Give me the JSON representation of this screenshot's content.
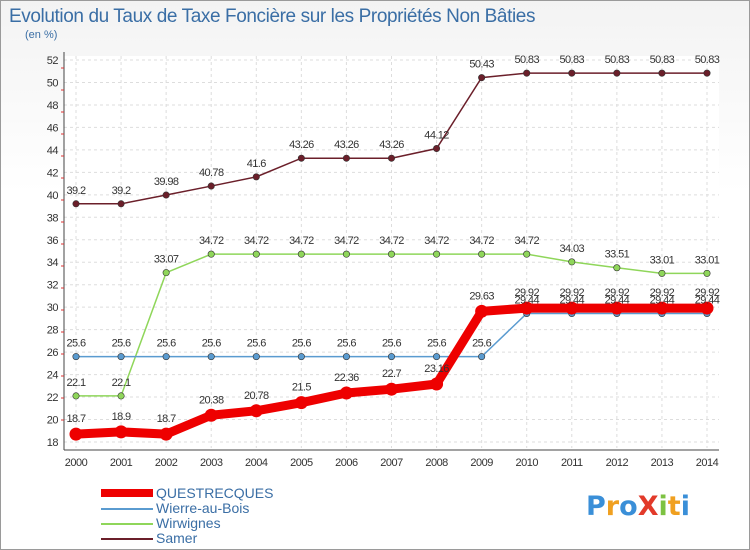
{
  "title": "Evolution du Taux de Taxe Foncière sur les Propriétés Non Bâties",
  "ylabel": "(en %)",
  "logo": {
    "text": "ProXiti",
    "colors": [
      "#3a8fd8",
      "#f0a020",
      "#3a8fd8",
      "#e23a2a",
      "#7dc242",
      "#f0a020",
      "#3a8fd8"
    ]
  },
  "chart_data": {
    "type": "line",
    "title": "Evolution du Taux de Taxe Foncière sur les Propriétés Non Bâties",
    "ylabel": "(en %)",
    "x": [
      2000,
      2001,
      2002,
      2003,
      2004,
      2005,
      2006,
      2007,
      2008,
      2009,
      2010,
      2011,
      2012,
      2013,
      2014
    ],
    "x_tick_labels": [
      "2000",
      "2001",
      "2002",
      "2003",
      "2004",
      "2005",
      "2006",
      "2007",
      "2008",
      "2009",
      "2010",
      "2011",
      "2012",
      "2013",
      "2014"
    ],
    "ylim": [
      18,
      52
    ],
    "y_ticks": [
      18,
      20,
      22,
      24,
      26,
      28,
      30,
      32,
      34,
      36,
      38,
      40,
      42,
      44,
      46,
      48,
      50,
      52
    ],
    "y_tick_labels": [
      "18",
      "20",
      "22",
      "24",
      "26",
      "28",
      "30",
      "32",
      "34",
      "36",
      "38",
      "40",
      "42",
      "44",
      "46",
      "48",
      "50",
      "52"
    ],
    "grid": true,
    "legend_position": "bottom-left",
    "series": [
      {
        "name": "Samer",
        "color": "#6b1f2a",
        "values": [
          39.2,
          39.2,
          39.98,
          40.78,
          41.6,
          43.26,
          43.26,
          43.26,
          44.12,
          50.43,
          50.83,
          50.83,
          50.83,
          50.83,
          50.83
        ],
        "labels": [
          "39.2",
          "39.2",
          "39.98",
          "40.78",
          "41.6",
          "43.26",
          "43.26",
          "43.26",
          "44.12",
          "50.43",
          "50.83",
          "50.83",
          "50.83",
          "50.83",
          "50.83"
        ]
      },
      {
        "name": "Wirwignes",
        "color": "#8fd65a",
        "values": [
          22.1,
          22.1,
          33.07,
          34.72,
          34.72,
          34.72,
          34.72,
          34.72,
          34.72,
          34.72,
          34.72,
          34.03,
          33.51,
          33.01,
          33.01
        ],
        "labels": [
          "22.1",
          "22.1",
          "33.07",
          "34.72",
          "34.72",
          "34.72",
          "34.72",
          "34.72",
          "34.72",
          "34.72",
          "34.72",
          "34.03",
          "33.51",
          "33.01",
          "33.01"
        ]
      },
      {
        "name": "Wierre-au-Bois",
        "color": "#5a9bd0",
        "values": [
          25.6,
          25.6,
          25.6,
          25.6,
          25.6,
          25.6,
          25.6,
          25.6,
          25.6,
          25.6,
          29.44,
          29.44,
          29.44,
          29.44,
          29.44
        ],
        "labels": [
          "25.6",
          "25.6",
          "25.6",
          "25.6",
          "25.6",
          "25.6",
          "25.6",
          "25.6",
          "25.6",
          "25.6",
          "29.44",
          "29.44",
          "29.44",
          "29.44",
          "29.44"
        ]
      },
      {
        "name": "QUESTRECQUES",
        "color": "#ee0000",
        "values": [
          18.7,
          18.9,
          18.7,
          20.38,
          20.78,
          21.5,
          22.36,
          22.7,
          23.16,
          29.63,
          29.92,
          29.92,
          29.92,
          29.92,
          29.92
        ],
        "labels": [
          "18.7",
          "18.9",
          "18.7",
          "20.38",
          "20.78",
          "21.5",
          "22.36",
          "22.7",
          "23.16",
          "29.63",
          "29.92",
          "29.92",
          "29.92",
          "29.92",
          "29.92"
        ]
      }
    ],
    "legend": [
      "QUESTRECQUES",
      "Wierre-au-Bois",
      "Wirwignes",
      "Samer"
    ]
  }
}
